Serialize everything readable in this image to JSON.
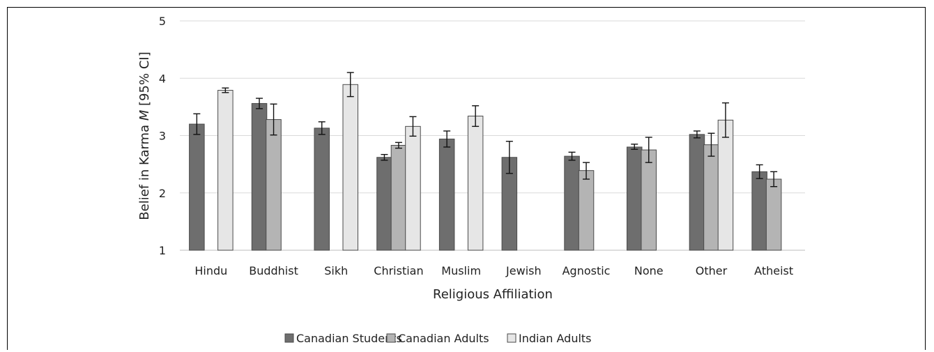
{
  "chart_data": {
    "type": "bar",
    "xlabel": "Religious Affiliation",
    "ylabel_prefix": "Belief in Karma ",
    "ylabel_italic": "M",
    "ylabel_suffix": " [95% CI]",
    "ylim": [
      1,
      5
    ],
    "yticks": [
      1,
      2,
      3,
      4,
      5
    ],
    "grid": true,
    "legend_position": "bottom",
    "categories": [
      "Hindu",
      "Buddhist",
      "Sikh",
      "Christian",
      "Muslim",
      "Jewish",
      "Agnostic",
      "None",
      "Other",
      "Atheist"
    ],
    "series": [
      {
        "name": "Canadian Students",
        "color": "#6e6e6e",
        "values": [
          3.2,
          3.56,
          3.13,
          2.62,
          2.94,
          2.62,
          2.64,
          2.8,
          3.02,
          2.37
        ],
        "ci_low": [
          3.02,
          3.47,
          3.02,
          2.57,
          2.8,
          2.34,
          2.57,
          2.76,
          2.96,
          2.25
        ],
        "ci_high": [
          3.38,
          3.65,
          3.24,
          2.67,
          3.08,
          2.9,
          2.71,
          2.85,
          3.08,
          2.49
        ]
      },
      {
        "name": "Canadian Adults",
        "color": "#b4b4b4",
        "values": [
          null,
          3.28,
          null,
          2.83,
          null,
          null,
          2.39,
          2.75,
          2.84,
          2.24
        ],
        "ci_low": [
          null,
          3.01,
          null,
          2.78,
          null,
          null,
          2.24,
          2.53,
          2.64,
          2.11
        ],
        "ci_high": [
          null,
          3.55,
          null,
          2.88,
          null,
          null,
          2.53,
          2.97,
          3.04,
          2.37
        ]
      },
      {
        "name": "Indian Adults",
        "color": "#e6e6e6",
        "values": [
          3.79,
          null,
          3.89,
          3.16,
          3.34,
          null,
          null,
          null,
          3.27,
          null
        ],
        "ci_low": [
          3.75,
          null,
          3.68,
          2.99,
          3.16,
          null,
          null,
          null,
          2.97,
          null
        ],
        "ci_high": [
          3.83,
          null,
          4.1,
          3.33,
          3.52,
          null,
          null,
          null,
          3.57,
          null
        ]
      }
    ]
  }
}
